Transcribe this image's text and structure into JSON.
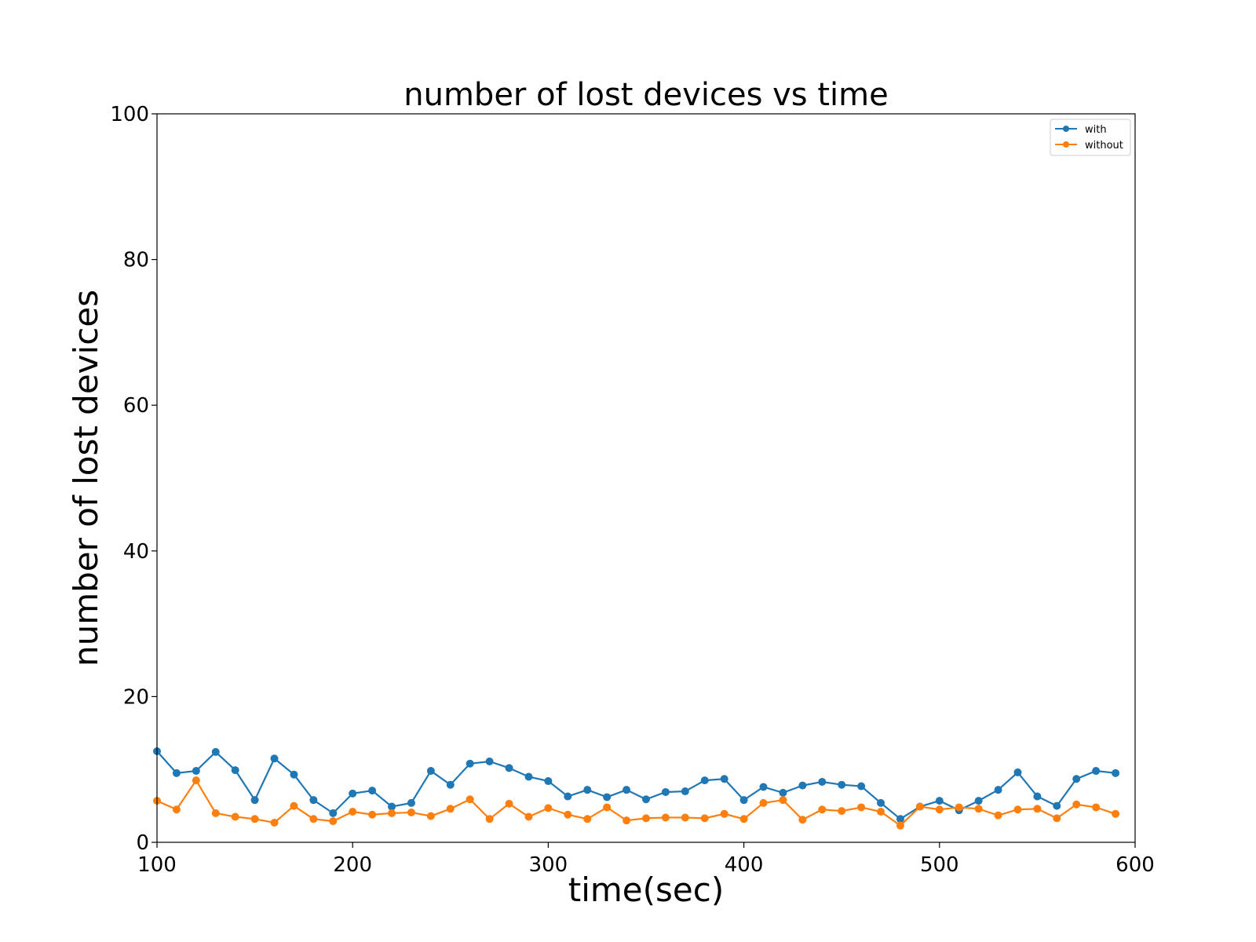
{
  "chart_data": {
    "type": "line",
    "title": "number of lost devices vs time",
    "xlabel": "time(sec)",
    "ylabel": "number of lost devices",
    "xlim": [
      100,
      600
    ],
    "ylim": [
      0,
      100
    ],
    "xticks": [
      100,
      200,
      300,
      400,
      500,
      600
    ],
    "yticks": [
      0,
      20,
      40,
      60,
      80,
      100
    ],
    "grid": false,
    "legend_position": "top-right",
    "x": [
      100,
      110,
      120,
      130,
      140,
      150,
      160,
      170,
      180,
      190,
      200,
      210,
      220,
      230,
      240,
      250,
      260,
      270,
      280,
      290,
      300,
      310,
      320,
      330,
      340,
      350,
      360,
      370,
      380,
      390,
      400,
      410,
      420,
      430,
      440,
      450,
      460,
      470,
      480,
      490,
      500,
      510,
      520,
      530,
      540,
      550,
      560,
      570,
      580,
      590
    ],
    "series": [
      {
        "name": "with",
        "color": "#1f77b4",
        "values": [
          12.5,
          9.5,
          9.8,
          12.4,
          9.9,
          5.8,
          11.5,
          9.3,
          5.8,
          4.0,
          6.7,
          7.1,
          4.9,
          5.4,
          9.8,
          7.9,
          10.8,
          11.1,
          10.2,
          9.0,
          8.4,
          6.3,
          7.2,
          6.2,
          7.2,
          5.9,
          6.9,
          7.0,
          8.5,
          8.7,
          5.8,
          7.6,
          6.8,
          7.8,
          8.3,
          7.9,
          7.7,
          5.4,
          3.2,
          4.9,
          5.7,
          4.4,
          5.7,
          7.2,
          9.6,
          6.3,
          5.0,
          8.7,
          9.8,
          9.5
        ]
      },
      {
        "name": "without",
        "color": "#ff7f0e",
        "values": [
          5.7,
          4.5,
          8.5,
          4.0,
          3.5,
          3.2,
          2.7,
          5.0,
          3.2,
          2.9,
          4.2,
          3.8,
          4.0,
          4.1,
          3.6,
          4.6,
          5.9,
          3.2,
          5.3,
          3.5,
          4.7,
          3.8,
          3.2,
          4.8,
          3.0,
          3.3,
          3.4,
          3.4,
          3.3,
          3.9,
          3.2,
          5.4,
          5.8,
          3.1,
          4.5,
          4.3,
          4.8,
          4.2,
          2.3,
          4.9,
          4.5,
          4.8,
          4.6,
          3.7,
          4.5,
          4.6,
          3.3,
          5.2,
          4.8,
          3.9
        ]
      }
    ]
  }
}
